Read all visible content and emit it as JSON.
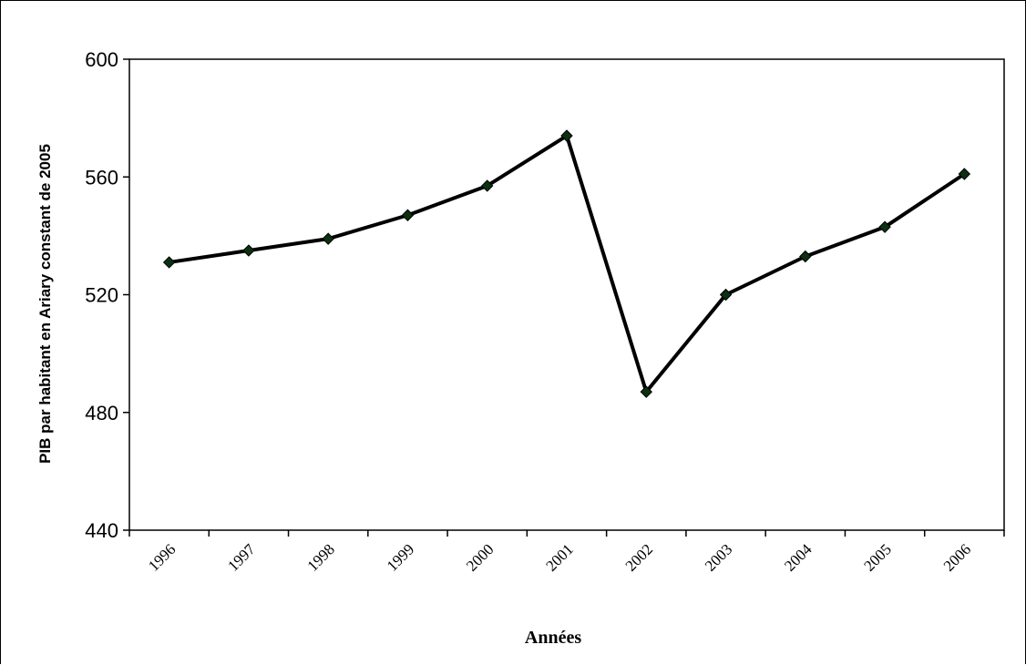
{
  "chart_data": {
    "type": "line",
    "title": "",
    "xlabel": "Années",
    "ylabel": "PIB par habitant en Ariary constant de 2005",
    "categories": [
      "1996",
      "1997",
      "1998",
      "1999",
      "2000",
      "2001",
      "2002",
      "2003",
      "2004",
      "2005",
      "2006"
    ],
    "series": [
      {
        "values": [
          531,
          535,
          539,
          547,
          557,
          574,
          487,
          520,
          533,
          543,
          561
        ]
      }
    ],
    "ylim": [
      440,
      600
    ],
    "yticks": [
      440,
      480,
      520,
      560,
      600
    ],
    "grid": false,
    "legend": "none",
    "line_color": "#000000",
    "marker_color": "#0d3010"
  }
}
